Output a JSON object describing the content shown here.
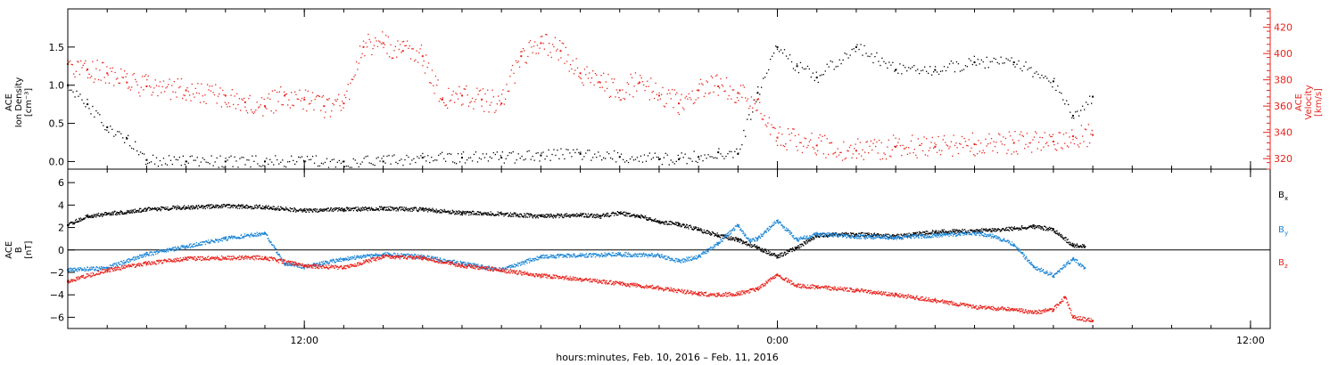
{
  "figure": {
    "xlabel": "hours:minutes, Feb. 10, 2016 – Feb. 11, 2016",
    "x_ticks": [
      {
        "hour": 12,
        "label": "12:00"
      },
      {
        "hour": 24,
        "label": "0:00"
      },
      {
        "hour": 36,
        "label": "12:00"
      }
    ],
    "xlim_hours": [
      6.0,
      36.5
    ]
  },
  "chart_data": [
    {
      "type": "scatter",
      "panel": "top",
      "left_axis": {
        "label_lines": [
          "ACE",
          "Ion Density",
          "[cm⁻³]"
        ],
        "ylim": [
          -0.1,
          2.0
        ],
        "ticks": [
          0.0,
          0.5,
          1.0,
          1.5
        ],
        "tick_labels": [
          "0.0",
          "0.5",
          "1.0",
          "1.5"
        ],
        "color": "#000000"
      },
      "right_axis": {
        "label_lines": [
          "ACE",
          "Velocity",
          "[km/s]"
        ],
        "ylim": [
          312,
          434
        ],
        "ticks": [
          320,
          340,
          360,
          380,
          400,
          420
        ],
        "tick_labels": [
          "320",
          "340",
          "360",
          "380",
          "400",
          "420"
        ],
        "color": "#e8231c"
      },
      "series": [
        {
          "axis": "left",
          "color": "#000000",
          "x": [
            6.0,
            6.5,
            7.0,
            7.5,
            8.0,
            9.0,
            10.0,
            11.0,
            12.0,
            13.0,
            14.0,
            15.0,
            16.0,
            17.0,
            18.0,
            19.0,
            20.0,
            21.0,
            21.5,
            22.0,
            22.5,
            23.0,
            23.5,
            24.0,
            24.5,
            25.0,
            26.0,
            27.0,
            28.0,
            29.0,
            30.0,
            31.0,
            31.5,
            32.0
          ],
          "values": [
            1.0,
            0.75,
            0.45,
            0.3,
            0.02,
            0.0,
            0.0,
            0.0,
            0.0,
            0.0,
            0.0,
            0.05,
            0.05,
            0.05,
            0.08,
            0.1,
            0.06,
            0.03,
            0.03,
            0.06,
            0.12,
            0.1,
            0.9,
            1.5,
            1.25,
            1.1,
            1.5,
            1.2,
            1.2,
            1.3,
            1.3,
            1.05,
            0.6,
            0.85
          ]
        },
        {
          "axis": "right",
          "color": "#e8231c",
          "x": [
            6.0,
            6.5,
            7.0,
            7.5,
            8.0,
            9.0,
            10.0,
            10.5,
            11.0,
            11.5,
            12.0,
            12.5,
            13.0,
            13.5,
            14.0,
            14.5,
            15.0,
            15.5,
            16.0,
            16.5,
            17.0,
            17.5,
            18.0,
            18.5,
            19.0,
            19.5,
            20.0,
            20.5,
            21.0,
            21.5,
            22.0,
            22.5,
            23.0,
            23.5,
            24.0,
            25.0,
            26.0,
            27.0,
            28.0,
            29.0,
            30.0,
            31.0,
            31.5,
            32.0
          ],
          "values": [
            392,
            388,
            385,
            378,
            375,
            372,
            368,
            363,
            360,
            368,
            365,
            360,
            362,
            405,
            408,
            402,
            398,
            365,
            368,
            365,
            362,
            398,
            408,
            402,
            385,
            378,
            372,
            378,
            368,
            362,
            372,
            375,
            370,
            365,
            336,
            330,
            326,
            329,
            329,
            331,
            332,
            333,
            337,
            338
          ]
        }
      ]
    },
    {
      "type": "scatter",
      "panel": "bottom",
      "left_axis": {
        "label_lines": [
          "ACE",
          "B",
          "[nT]"
        ],
        "ylim": [
          -7.0,
          7.2
        ],
        "ticks": [
          -6,
          -4,
          -2,
          0,
          2,
          4,
          6
        ],
        "tick_labels": [
          "−6",
          "−4",
          "−2",
          "0",
          "2",
          "4",
          "6"
        ],
        "zero_line": true
      },
      "series": [
        {
          "name": "Bx",
          "label_main": "B",
          "label_sub": "x",
          "color": "#000000",
          "x": [
            6.0,
            6.5,
            7.0,
            8.0,
            9.0,
            10.0,
            11.0,
            12.0,
            13.0,
            14.0,
            15.0,
            16.0,
            17.0,
            18.0,
            19.0,
            19.5,
            20.0,
            20.5,
            21.0,
            21.5,
            22.0,
            22.5,
            23.0,
            23.5,
            24.0,
            24.5,
            25.0,
            26.0,
            27.0,
            28.0,
            29.0,
            30.0,
            30.5,
            31.0,
            31.5,
            31.8
          ],
          "values": [
            2.2,
            3.0,
            3.2,
            3.6,
            3.8,
            3.9,
            3.8,
            3.5,
            3.6,
            3.7,
            3.6,
            3.3,
            3.2,
            3.0,
            3.1,
            3.0,
            3.3,
            3.0,
            2.5,
            2.3,
            1.8,
            1.3,
            0.9,
            0.2,
            -0.6,
            0.2,
            1.3,
            1.4,
            1.2,
            1.6,
            1.7,
            1.9,
            2.1,
            1.8,
            0.4,
            0.3
          ]
        },
        {
          "name": "By",
          "label_main": "B",
          "label_sub": "y",
          "color": "#1a85d6",
          "x": [
            6.0,
            7.0,
            8.0,
            9.0,
            10.0,
            11.0,
            11.5,
            12.0,
            13.0,
            14.0,
            15.0,
            16.0,
            17.0,
            18.0,
            19.0,
            20.0,
            21.0,
            21.5,
            22.0,
            22.5,
            23.0,
            23.3,
            23.5,
            24.0,
            24.5,
            25.0,
            26.0,
            27.0,
            28.0,
            29.0,
            29.5,
            30.0,
            30.5,
            31.0,
            31.5,
            31.8
          ],
          "values": [
            -1.8,
            -1.6,
            -0.4,
            0.3,
            1.0,
            1.5,
            -1.2,
            -1.5,
            -0.8,
            -0.4,
            -0.6,
            -1.2,
            -1.8,
            -0.6,
            -0.5,
            -0.4,
            -0.5,
            -1.0,
            -0.6,
            0.6,
            2.2,
            0.8,
            1.0,
            2.6,
            0.9,
            1.4,
            1.2,
            1.1,
            1.3,
            1.5,
            1.2,
            0.5,
            -1.5,
            -2.3,
            -0.8,
            -1.6
          ]
        },
        {
          "name": "Bz",
          "label_main": "B",
          "label_sub": "z",
          "color": "#e8231c",
          "x": [
            6.0,
            7.0,
            8.0,
            9.0,
            10.0,
            11.0,
            12.0,
            13.0,
            14.0,
            15.0,
            16.0,
            17.0,
            18.0,
            19.0,
            20.0,
            21.0,
            22.0,
            22.5,
            23.0,
            23.5,
            24.0,
            24.5,
            25.0,
            26.0,
            27.0,
            28.0,
            29.0,
            30.0,
            30.5,
            31.0,
            31.3,
            31.5,
            32.0
          ],
          "values": [
            -2.8,
            -1.8,
            -1.2,
            -0.8,
            -0.7,
            -0.7,
            -1.4,
            -1.6,
            -0.6,
            -0.7,
            -1.4,
            -1.8,
            -2.3,
            -2.6,
            -3.0,
            -3.4,
            -3.9,
            -4.0,
            -3.9,
            -3.5,
            -2.2,
            -3.2,
            -3.3,
            -3.6,
            -4.0,
            -4.5,
            -5.1,
            -5.3,
            -5.6,
            -5.3,
            -4.2,
            -6.0,
            -6.3
          ]
        }
      ]
    }
  ]
}
